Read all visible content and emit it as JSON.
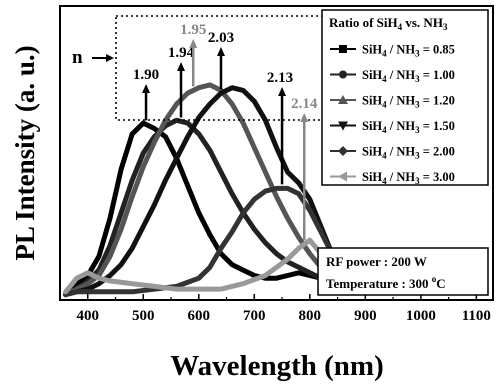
{
  "chart_data": {
    "type": "line",
    "title": "",
    "xlabel": "Wavelength (nm)",
    "ylabel": "PL Intensity (a. u.)",
    "xlim": [
      350,
      1130
    ],
    "ylim": [
      0,
      1.08
    ],
    "x_ticks": [
      "400",
      "500",
      "600",
      "700",
      "800",
      "900",
      "1000",
      "1100"
    ],
    "legend": {
      "title_prefix": "Ratio of SiH",
      "title_sub1": "4",
      "title_mid": " vs. NH",
      "title_sub2": "3",
      "placement": "top-right"
    },
    "series": [
      {
        "name": "SiH4 / NH3 = 0.85",
        "label_ratio": "0.85",
        "color": "#000000",
        "marker": "square",
        "points": [
          [
            360,
            0.02
          ],
          [
            380,
            0.06
          ],
          [
            400,
            0.09
          ],
          [
            420,
            0.16
          ],
          [
            440,
            0.3
          ],
          [
            460,
            0.48
          ],
          [
            480,
            0.61
          ],
          [
            500,
            0.65
          ],
          [
            520,
            0.63
          ],
          [
            540,
            0.6
          ],
          [
            560,
            0.52
          ],
          [
            580,
            0.42
          ],
          [
            600,
            0.32
          ],
          [
            620,
            0.24
          ],
          [
            640,
            0.17
          ],
          [
            660,
            0.13
          ],
          [
            680,
            0.11
          ],
          [
            700,
            0.09
          ],
          [
            720,
            0.08
          ],
          [
            740,
            0.08
          ],
          [
            760,
            0.09
          ],
          [
            780,
            0.1
          ],
          [
            800,
            0.09
          ],
          [
            820,
            0.08
          ],
          [
            840,
            0.07
          ]
        ]
      },
      {
        "name": "SiH4 / NH3 = 1.00",
        "label_ratio": "1.00",
        "color": "#222222",
        "marker": "circle",
        "points": [
          [
            360,
            0.02
          ],
          [
            380,
            0.04
          ],
          [
            400,
            0.07
          ],
          [
            420,
            0.11
          ],
          [
            440,
            0.2
          ],
          [
            460,
            0.32
          ],
          [
            480,
            0.44
          ],
          [
            500,
            0.54
          ],
          [
            520,
            0.6
          ],
          [
            540,
            0.64
          ],
          [
            560,
            0.66
          ],
          [
            580,
            0.65
          ],
          [
            600,
            0.61
          ],
          [
            620,
            0.55
          ],
          [
            640,
            0.47
          ],
          [
            660,
            0.39
          ],
          [
            680,
            0.32
          ],
          [
            700,
            0.26
          ],
          [
            720,
            0.21
          ],
          [
            740,
            0.17
          ],
          [
            760,
            0.14
          ],
          [
            780,
            0.12
          ],
          [
            800,
            0.1
          ],
          [
            820,
            0.08
          ]
        ]
      },
      {
        "name": "SiH4 / NH3 = 1.20",
        "label_ratio": "1.20",
        "color": "#555555",
        "marker": "triangle-up",
        "points": [
          [
            360,
            0.02
          ],
          [
            380,
            0.04
          ],
          [
            400,
            0.06
          ],
          [
            420,
            0.09
          ],
          [
            440,
            0.16
          ],
          [
            460,
            0.26
          ],
          [
            480,
            0.38
          ],
          [
            500,
            0.49
          ],
          [
            520,
            0.58
          ],
          [
            540,
            0.66
          ],
          [
            560,
            0.72
          ],
          [
            580,
            0.76
          ],
          [
            600,
            0.78
          ],
          [
            620,
            0.79
          ],
          [
            640,
            0.77
          ],
          [
            660,
            0.72
          ],
          [
            680,
            0.65
          ],
          [
            700,
            0.56
          ],
          [
            720,
            0.47
          ],
          [
            740,
            0.38
          ],
          [
            760,
            0.3
          ],
          [
            780,
            0.23
          ],
          [
            800,
            0.17
          ],
          [
            820,
            0.12
          ],
          [
            840,
            0.08
          ]
        ]
      },
      {
        "name": "SiH4 / NH3 = 1.50",
        "label_ratio": "1.50",
        "color": "#111111",
        "marker": "triangle-down",
        "points": [
          [
            360,
            0.02
          ],
          [
            380,
            0.03
          ],
          [
            400,
            0.04
          ],
          [
            420,
            0.06
          ],
          [
            440,
            0.09
          ],
          [
            460,
            0.13
          ],
          [
            480,
            0.19
          ],
          [
            500,
            0.27
          ],
          [
            520,
            0.35
          ],
          [
            540,
            0.44
          ],
          [
            560,
            0.52
          ],
          [
            580,
            0.6
          ],
          [
            600,
            0.67
          ],
          [
            620,
            0.72
          ],
          [
            640,
            0.76
          ],
          [
            660,
            0.78
          ],
          [
            680,
            0.77
          ],
          [
            700,
            0.73
          ],
          [
            720,
            0.66
          ],
          [
            740,
            0.56
          ],
          [
            760,
            0.47
          ],
          [
            780,
            0.43
          ],
          [
            800,
            0.37
          ],
          [
            820,
            0.27
          ],
          [
            840,
            0.17
          ],
          [
            860,
            0.09
          ]
        ]
      },
      {
        "name": "SiH4 / NH3 = 2.00",
        "label_ratio": "2.00",
        "color": "#333333",
        "marker": "diamond",
        "points": [
          [
            360,
            0.02
          ],
          [
            380,
            0.03
          ],
          [
            400,
            0.03
          ],
          [
            440,
            0.03
          ],
          [
            480,
            0.03
          ],
          [
            520,
            0.04
          ],
          [
            560,
            0.05
          ],
          [
            600,
            0.08
          ],
          [
            620,
            0.12
          ],
          [
            640,
            0.19
          ],
          [
            660,
            0.25
          ],
          [
            680,
            0.32
          ],
          [
            700,
            0.37
          ],
          [
            720,
            0.4
          ],
          [
            740,
            0.41
          ],
          [
            760,
            0.41
          ],
          [
            780,
            0.39
          ],
          [
            800,
            0.33
          ],
          [
            820,
            0.25
          ],
          [
            840,
            0.17
          ],
          [
            860,
            0.1
          ],
          [
            880,
            0.05
          ]
        ]
      },
      {
        "name": "SiH4 / NH3 = 3.00",
        "label_ratio": "3.00",
        "color": "#999999",
        "marker": "triangle-left",
        "points": [
          [
            360,
            0.03
          ],
          [
            380,
            0.08
          ],
          [
            400,
            0.1
          ],
          [
            420,
            0.08
          ],
          [
            440,
            0.07
          ],
          [
            480,
            0.06
          ],
          [
            520,
            0.05
          ],
          [
            560,
            0.04
          ],
          [
            600,
            0.04
          ],
          [
            640,
            0.04
          ],
          [
            680,
            0.06
          ],
          [
            720,
            0.09
          ],
          [
            760,
            0.15
          ],
          [
            780,
            0.19
          ],
          [
            800,
            0.22
          ],
          [
            820,
            0.17
          ],
          [
            840,
            0.1
          ],
          [
            860,
            0.05
          ]
        ]
      }
    ],
    "annotations": [
      {
        "text": "1.90",
        "x": 505,
        "color": "#000000"
      },
      {
        "text": "1.94",
        "x": 568,
        "color": "#000000"
      },
      {
        "text": "1.95",
        "x": 590,
        "color": "#888888"
      },
      {
        "text": "2.03",
        "x": 640,
        "color": "#000000"
      },
      {
        "text": "2.13",
        "x": 750,
        "color": "#000000"
      },
      {
        "text": "2.14",
        "x": 790,
        "color": "#888888"
      }
    ],
    "n_label": "n",
    "info_box": {
      "rf_power": "RF power : 200 W",
      "temperature_prefix": "Temperature : 300 ",
      "temperature_sup": "o",
      "temperature_suffix": "C"
    }
  }
}
